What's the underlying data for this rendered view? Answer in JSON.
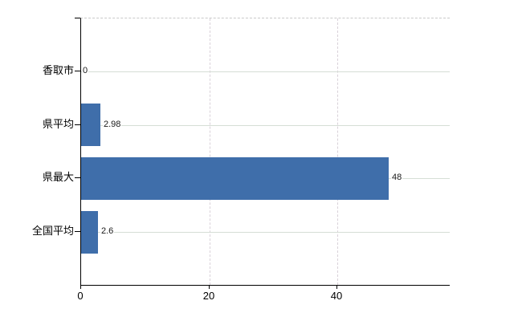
{
  "chart_data": {
    "type": "bar",
    "orientation": "horizontal",
    "title": "",
    "categories": [
      "香取市",
      "県平均",
      "県最大",
      "全国平均"
    ],
    "values": [
      0,
      2.98,
      48,
      2.6
    ],
    "data_labels": [
      "0",
      "2.98",
      "48",
      "2.6"
    ],
    "x_ticks": [
      0,
      20,
      40
    ],
    "x_tick_labels": [
      "0",
      "20",
      "40"
    ],
    "xlim": [
      0,
      57.5
    ],
    "xlabel": "",
    "ylabel": "",
    "grid": true,
    "legend": false,
    "bar_color": "#3f6eaa",
    "axis_color": "#000000",
    "h_grid_color": "#d6ded6",
    "v_grid_color": "#d9d1d9",
    "background_color": "#ffffff"
  }
}
